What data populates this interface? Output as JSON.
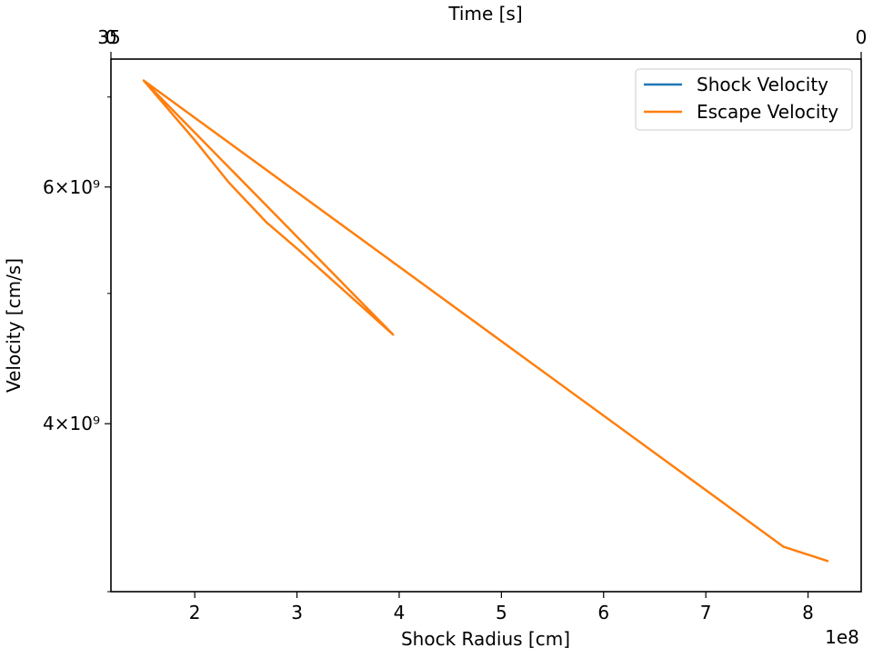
{
  "chart_data": {
    "type": "line",
    "xlabel": "Shock Radius [cm]",
    "x_offset_label": "1e8",
    "ylabel": "Velocity [cm/s]",
    "top_xlabel": "Time [s]",
    "top_x_ticks": [
      "35",
      "0",
      "0"
    ],
    "x_ticks": [
      {
        "value": 2,
        "label": "2"
      },
      {
        "value": 3,
        "label": "3"
      },
      {
        "value": 4,
        "label": "4"
      },
      {
        "value": 5,
        "label": "5"
      },
      {
        "value": 6,
        "label": "6"
      },
      {
        "value": 7,
        "label": "7"
      },
      {
        "value": 8,
        "label": "8"
      }
    ],
    "y_ticks": [
      {
        "value": 4000000000.0,
        "label": "4×10⁹"
      },
      {
        "value": 6000000000.0,
        "label": "6×10⁹"
      }
    ],
    "y_minor_ticks": [
      3000000000.0,
      5000000000.0,
      7000000000.0
    ],
    "xlim": [
      1.18,
      8.52
    ],
    "ylim": [
      3000000000.0,
      7470000000.0
    ],
    "y_scale": "log",
    "grid": false,
    "legend_position": "top-right",
    "series": [
      {
        "name": "Shock Velocity",
        "color": "#1f77b4",
        "points": []
      },
      {
        "name": "Escape Velocity",
        "color": "#ff7f0e",
        "points": [
          [
            8.2,
            3160000000.0
          ],
          [
            7.76,
            3240000000.0
          ],
          [
            1.5,
            7200000000.0
          ],
          [
            3.94,
            4660000000.0
          ],
          [
            1.5,
            7200000000.0
          ],
          [
            2.0,
            6500000000.0
          ],
          [
            2.33,
            6050000000.0
          ],
          [
            2.7,
            5650000000.0
          ],
          [
            3.0,
            5400000000.0
          ],
          [
            3.94,
            4660000000.0
          ]
        ]
      }
    ]
  }
}
